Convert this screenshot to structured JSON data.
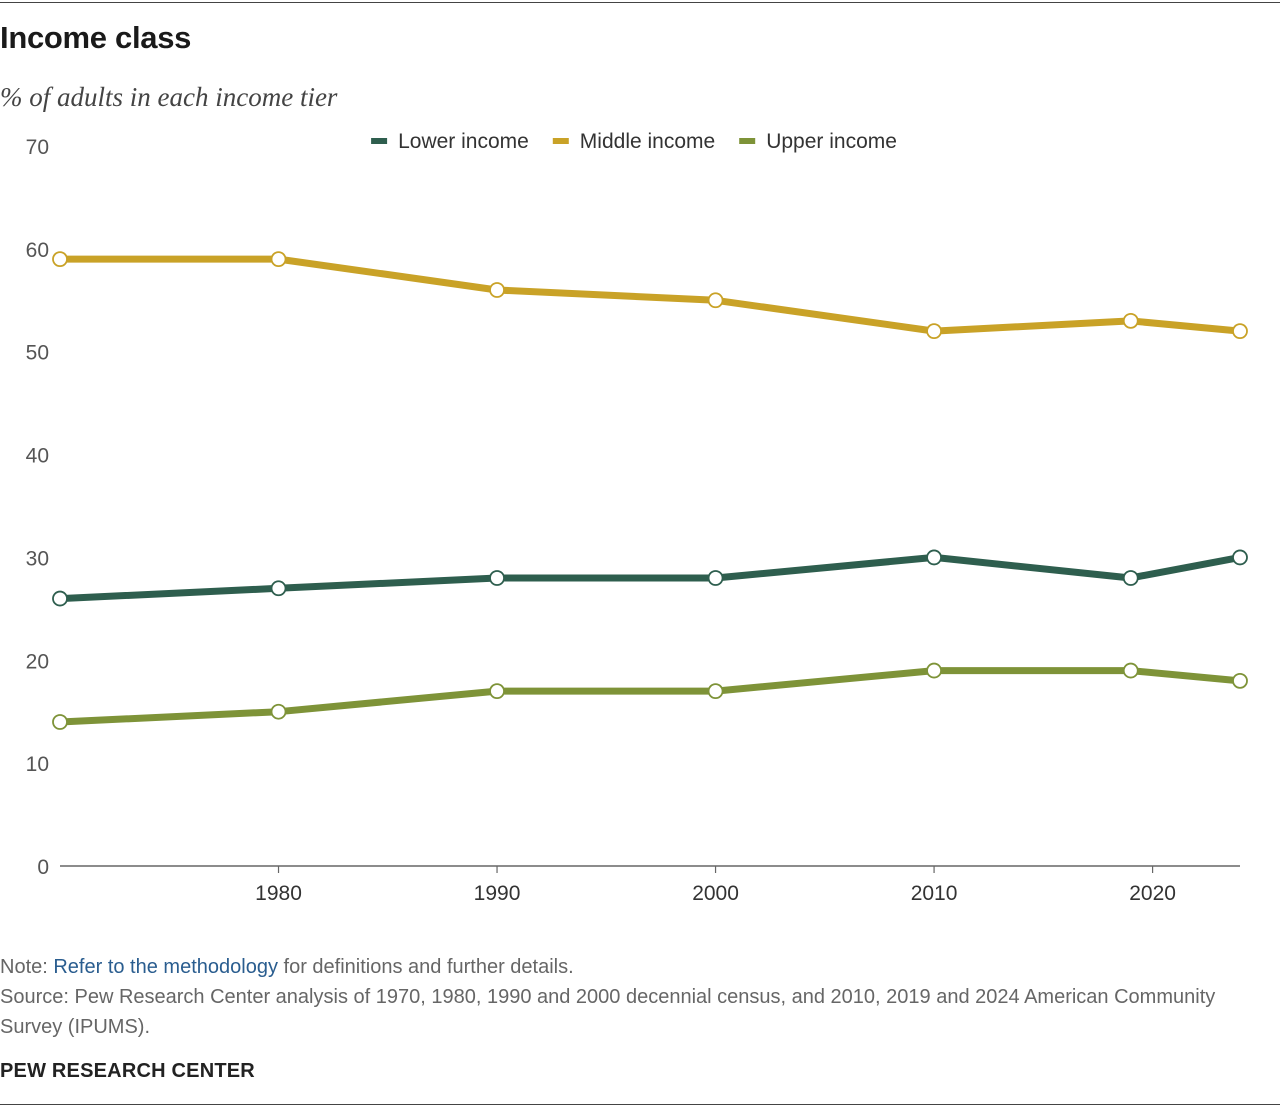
{
  "header": {
    "title": "Income class",
    "subtitle": "% of adults in each income tier"
  },
  "footer": {
    "note_prefix": "Note: ",
    "note_link": "Refer to the methodology",
    "note_suffix": " for definitions and further details.",
    "source": "Source: Pew Research Center analysis of 1970, 1980, 1990 and 2000 decennial census, and 2010, 2019 and 2024 American Community Survey (IPUMS).",
    "brand": "PEW RESEARCH CENTER"
  },
  "chart_data": {
    "type": "line",
    "title": "Income class",
    "subtitle": "% of adults in each income tier",
    "xlabel": "",
    "ylabel": "",
    "x": [
      1970,
      1980,
      1990,
      2000,
      2010,
      2019,
      2024
    ],
    "x_ticks": [
      1980,
      1990,
      2000,
      2010,
      2020
    ],
    "ylim": [
      0,
      70
    ],
    "y_ticks": [
      0,
      10,
      20,
      30,
      40,
      50,
      60,
      70
    ],
    "grid": false,
    "legend_position": "top-center",
    "series": [
      {
        "name": "Lower income",
        "color": "#2e5e4e",
        "values": [
          26,
          27,
          28,
          28,
          30,
          28,
          30
        ]
      },
      {
        "name": "Middle income",
        "color": "#c9a227",
        "values": [
          59,
          59,
          56,
          55,
          52,
          53,
          52
        ]
      },
      {
        "name": "Upper income",
        "color": "#7e9338",
        "values": [
          14,
          15,
          17,
          17,
          19,
          19,
          18
        ]
      }
    ]
  }
}
